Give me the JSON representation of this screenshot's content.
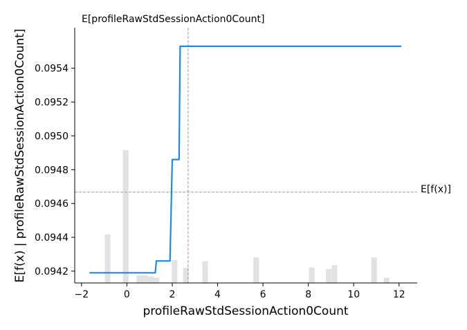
{
  "chart_data": {
    "type": "line",
    "title": "",
    "xlabel": "profileRawStdSessionAction0Count",
    "ylabel": "E[f(x) | profileRawStdSessionAction0Count]",
    "xlim": [
      -2.3,
      12.8
    ],
    "ylim": [
      0.09413,
      0.09564
    ],
    "x_ticks": [
      -2,
      0,
      2,
      4,
      6,
      8,
      10,
      12
    ],
    "x_tick_labels": [
      "−2",
      "0",
      "2",
      "4",
      "6",
      "8",
      "10",
      "12"
    ],
    "y_ticks": [
      0.0942,
      0.0944,
      0.0946,
      0.0948,
      0.095,
      0.0952,
      0.0954
    ],
    "y_tick_labels": [
      "0.0942",
      "0.0944",
      "0.0946",
      "0.0948",
      "0.0950",
      "0.0952",
      "0.0954"
    ],
    "grid": false,
    "colors": {
      "line": "#1e88e5",
      "histogram": "#e2e2e2",
      "reference": "#999999"
    },
    "series": [
      {
        "x": [
          -1.65,
          1.25,
          1.3,
          1.85,
          1.9,
          2.0,
          2.05,
          2.3,
          2.35,
          2.45,
          12.1
        ],
        "y": [
          0.09419,
          0.09419,
          0.09426,
          0.09426,
          0.09426,
          0.09486,
          0.09486,
          0.09486,
          0.09553,
          0.09553,
          0.09553
        ]
      }
    ],
    "histogram": {
      "bin_width": 0.25,
      "bins": [
        {
          "x": -0.85,
          "height": 0.19
        },
        {
          "x": -0.05,
          "height": 0.52
        },
        {
          "x": 0.55,
          "height": 0.03
        },
        {
          "x": 0.8,
          "height": 0.03
        },
        {
          "x": 1.05,
          "height": 0.026
        },
        {
          "x": 1.3,
          "height": 0.021
        },
        {
          "x": 2.1,
          "height": 0.09
        },
        {
          "x": 2.6,
          "height": 0.06
        },
        {
          "x": 3.45,
          "height": 0.085
        },
        {
          "x": 5.7,
          "height": 0.1
        },
        {
          "x": 8.15,
          "height": 0.06
        },
        {
          "x": 8.9,
          "height": 0.055
        },
        {
          "x": 9.15,
          "height": 0.07
        },
        {
          "x": 10.9,
          "height": 0.1
        },
        {
          "x": 11.45,
          "height": 0.02
        }
      ]
    },
    "reference_lines": {
      "vertical_x": 2.7,
      "vertical_label": "E[profileRawStdSessionAction0Count]",
      "horizontal_y": 0.094667,
      "horizontal_label": "E[f(x)]"
    }
  }
}
